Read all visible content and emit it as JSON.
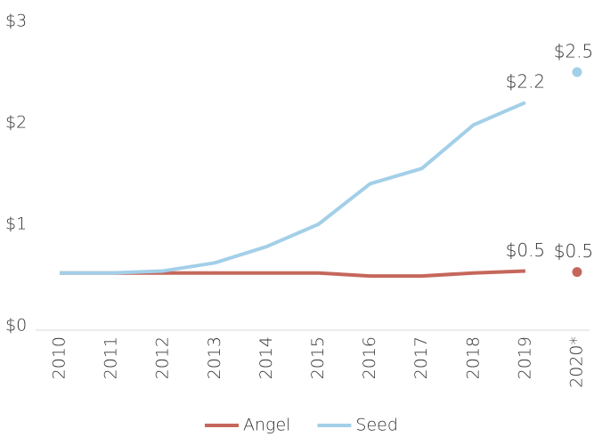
{
  "chart_data": {
    "type": "line",
    "categories": [
      "2010",
      "2011",
      "2012",
      "2013",
      "2014",
      "2015",
      "2016",
      "2017",
      "2018",
      "2019",
      "2020*"
    ],
    "series": [
      {
        "name": "Angel",
        "color": "#c5675c",
        "values": [
          0.52,
          0.52,
          0.52,
          0.52,
          0.52,
          0.52,
          0.49,
          0.49,
          0.52,
          0.54,
          0.53
        ],
        "value_labels": [
          null,
          null,
          null,
          null,
          null,
          null,
          null,
          null,
          null,
          "$0.5",
          "$0.5"
        ]
      },
      {
        "name": "Seed",
        "color": "#a3cfe8",
        "values": [
          0.52,
          0.52,
          0.54,
          0.62,
          0.78,
          1.0,
          1.4,
          1.55,
          1.98,
          2.2,
          2.5
        ],
        "value_labels": [
          null,
          null,
          null,
          null,
          null,
          null,
          null,
          null,
          null,
          "$2.2",
          "$2.5"
        ]
      }
    ],
    "ylim": [
      0,
      3
    ],
    "yticks": [
      {
        "value": 0,
        "label": "$0"
      },
      {
        "value": 1,
        "label": "$1"
      },
      {
        "value": 2,
        "label": "$2"
      },
      {
        "value": 3,
        "label": "$3"
      }
    ],
    "grid": false,
    "legend": "bottom"
  }
}
